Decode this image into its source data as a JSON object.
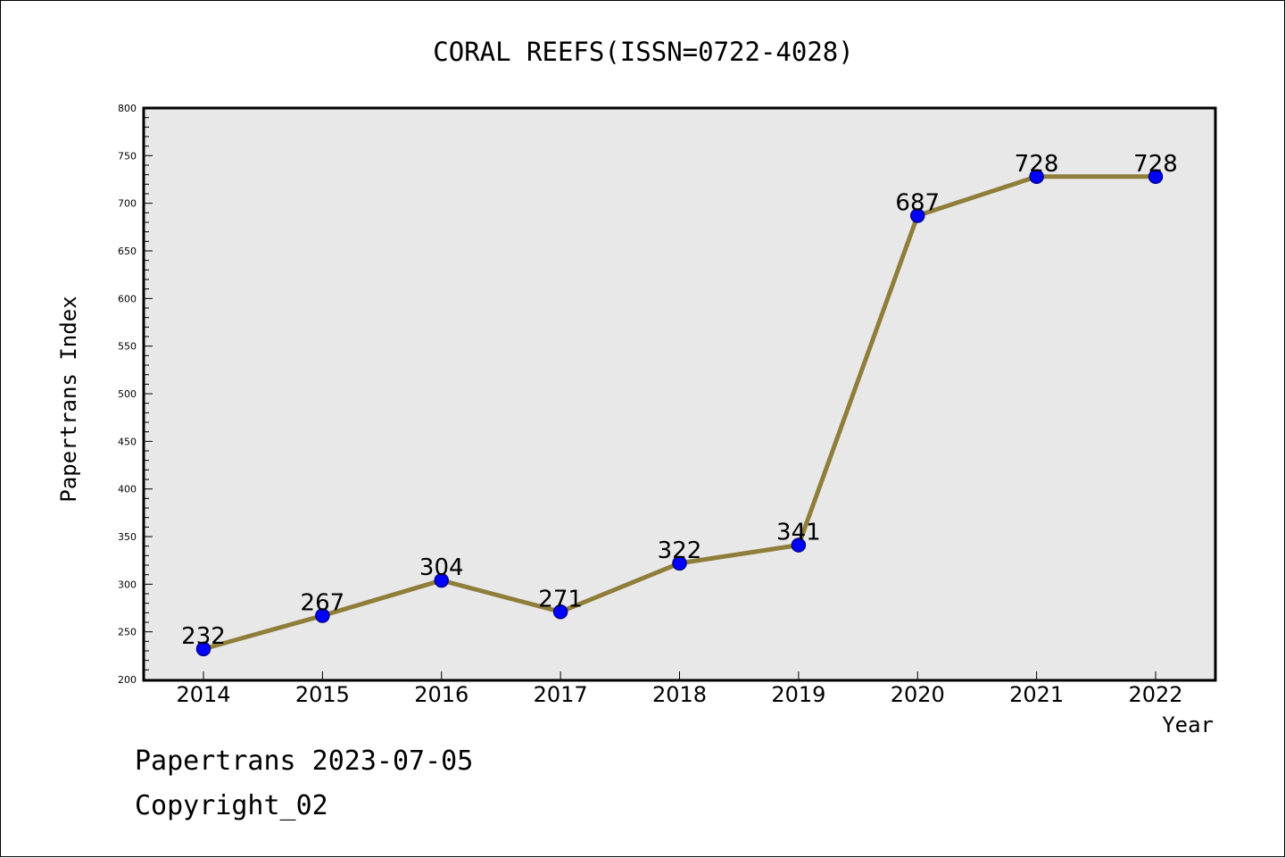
{
  "chart_data": {
    "type": "line",
    "title": "CORAL REEFS(ISSN=0722-4028)",
    "xlabel": "Year",
    "ylabel": "Papertrans Index",
    "categories": [
      "2014",
      "2015",
      "2016",
      "2017",
      "2018",
      "2019",
      "2020",
      "2021",
      "2022"
    ],
    "series": [
      {
        "values": [
          232,
          267,
          304,
          271,
          322,
          341,
          687,
          728,
          728
        ]
      }
    ],
    "data_labels": [
      "232",
      "267",
      "304",
      "271",
      "322",
      "341",
      "687",
      "728",
      "728"
    ],
    "ylim": [
      200,
      800
    ],
    "yticks": [
      200,
      250,
      300,
      350,
      400,
      450,
      500,
      550,
      600,
      650,
      700,
      750,
      800
    ],
    "grid": false,
    "legend": "none",
    "colors": {
      "plot_background": "#e8e8e8",
      "line": "#8f7e3a",
      "marker_fill": "#0000ff",
      "marker_edge": "#00008b"
    }
  },
  "footer": {
    "date_line": "Papertrans 2023-07-05",
    "copyright_line": "Copyright_02"
  }
}
